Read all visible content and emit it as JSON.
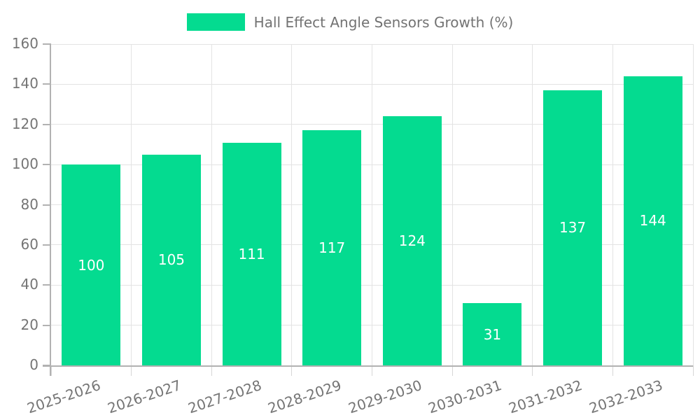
{
  "chart_data": {
    "type": "bar",
    "title": "Hall Effect Angle Sensors Growth (%)",
    "series_name": "Hall Effect Angle Sensors Growth (%)",
    "categories": [
      "2025-2026",
      "2026-2027",
      "2027-2028",
      "2028-2029",
      "2029-2030",
      "2030-2031",
      "2031-2032",
      "2032-2033"
    ],
    "values": [
      100,
      105,
      111,
      117,
      124,
      31,
      137,
      144
    ],
    "xlabel": "",
    "ylabel": "",
    "ylim": [
      0,
      160
    ],
    "yticks": [
      0,
      20,
      40,
      60,
      80,
      100,
      120,
      140,
      160
    ],
    "grid": true,
    "legend_position": "top-center",
    "value_labels": "white text centered inside bars",
    "colors": {
      "bar": "#04db90",
      "grid": "#e3e3e3",
      "axis": "#b2b2b2",
      "tick": "#d6d6d6",
      "label": "#757575",
      "legend_text": "#737373",
      "value_label": "#ffffff",
      "background": "#ffffff"
    }
  }
}
